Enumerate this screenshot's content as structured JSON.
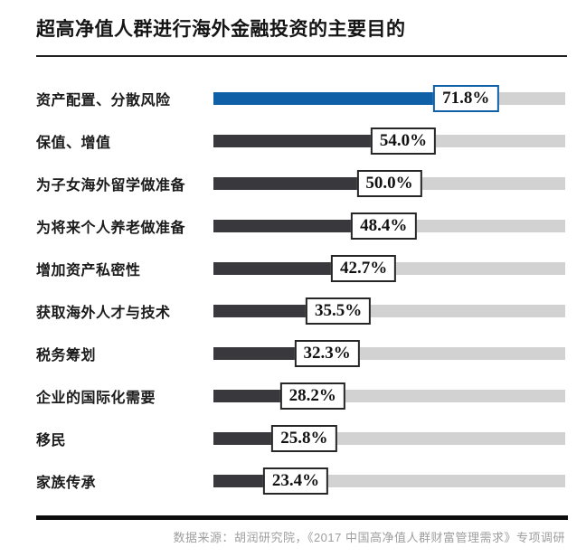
{
  "header": {
    "title": "超高净值人群进行海外金融投资的主要目的"
  },
  "footer": {
    "source": "数据来源：胡润研究院，《2017 中国高净值人群财富管理需求》专项调研"
  },
  "colors": {
    "highlight_bar": "#0f60a7",
    "bar": "#39383c",
    "track": "#d2d2d2",
    "title_text": "#141414",
    "source_text": "#9e9e9e"
  },
  "chart_data": {
    "type": "bar",
    "orientation": "horizontal",
    "title": "超高净值人群进行海外金融投资的主要目的",
    "categories": [
      "资产配置、分散风险",
      "保值、增值",
      "为子女海外留学做准备",
      "为将来个人养老做准备",
      "增加资产私密性",
      "获取海外人才与技术",
      "税务筹划",
      "企业的国际化需要",
      "移民",
      "家族传承"
    ],
    "values": [
      71.8,
      54.0,
      50.0,
      48.4,
      42.7,
      35.5,
      32.3,
      28.2,
      25.8,
      23.4
    ],
    "value_labels": [
      "71.8%",
      "54.0%",
      "50.0%",
      "48.4%",
      "42.7%",
      "35.5%",
      "32.3%",
      "28.2%",
      "25.8%",
      "23.4%"
    ],
    "xlim": [
      0,
      100
    ],
    "highlight_index": 0,
    "grid": false,
    "legend": false,
    "source": "数据来源：胡润研究院，《2017 中国高净值人群财富管理需求》专项调研"
  }
}
